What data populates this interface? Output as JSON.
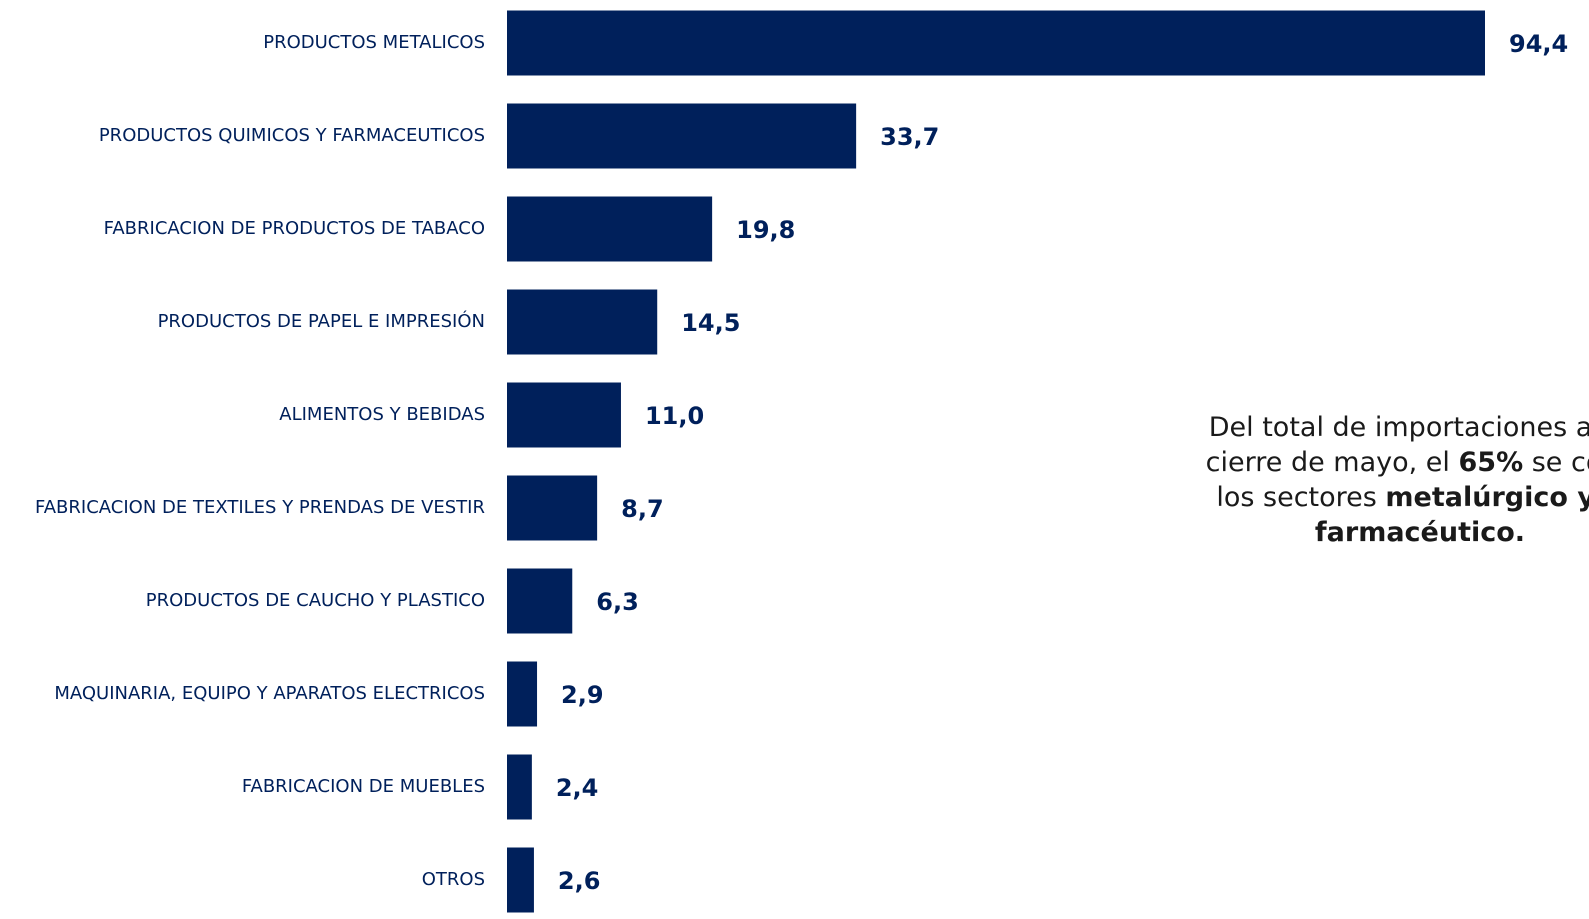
{
  "colors": {
    "bar": "#00205b",
    "label": "#00205b",
    "annotation_text": "#1a1a1a"
  },
  "chart_data": {
    "type": "bar",
    "orientation": "horizontal",
    "categories": [
      "PRODUCTOS METALICOS",
      "PRODUCTOS QUIMICOS Y FARMACEUTICOS",
      "FABRICACION DE PRODUCTOS DE TABACO",
      "PRODUCTOS DE PAPEL E IMPRESIÓN",
      "ALIMENTOS Y BEBIDAS",
      "FABRICACION DE TEXTILES Y PRENDAS DE VESTIR",
      "PRODUCTOS DE CAUCHO Y PLASTICO",
      "MAQUINARIA, EQUIPO Y APARATOS ELECTRICOS",
      "FABRICACION DE MUEBLES",
      "OTROS"
    ],
    "values": [
      94.4,
      33.7,
      19.8,
      14.5,
      11.0,
      8.7,
      6.3,
      2.9,
      2.4,
      2.6
    ],
    "value_labels": [
      "94,4",
      "33,7",
      "19,8",
      "14,5",
      "11,0",
      "8,7",
      "6,3",
      "2,9",
      "2,4",
      "2,6"
    ],
    "xlim": [
      0,
      94.4
    ],
    "grid": false,
    "legend": "none"
  },
  "annotation": {
    "line1": "Del total de importaciones alca",
    "line2_a": "cierre de mayo, el ",
    "line2_b": "65%",
    "line2_c": " se conc",
    "line3_a": "los sectores ",
    "line3_b": "metalúrgico y q",
    "line4": "farmacéutico."
  }
}
